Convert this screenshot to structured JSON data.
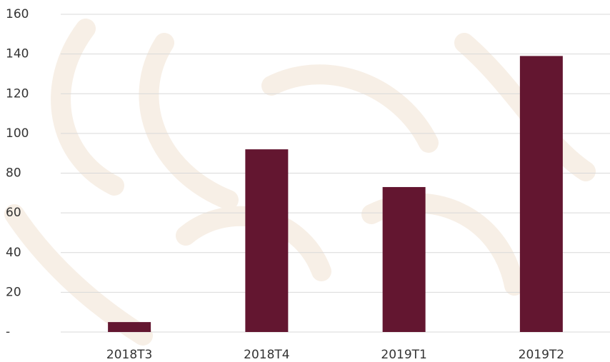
{
  "chart_data": {
    "type": "bar",
    "categories": [
      "2018T3",
      "2018T4",
      "2019T1",
      "2019T2"
    ],
    "values": [
      5,
      92,
      73,
      139
    ],
    "color": "#631630",
    "ylim": [
      0,
      160
    ],
    "yticks": [
      {
        "value": 0,
        "label": "-"
      },
      20,
      40,
      60,
      80,
      100,
      120,
      140,
      160
    ],
    "grid": true
  }
}
